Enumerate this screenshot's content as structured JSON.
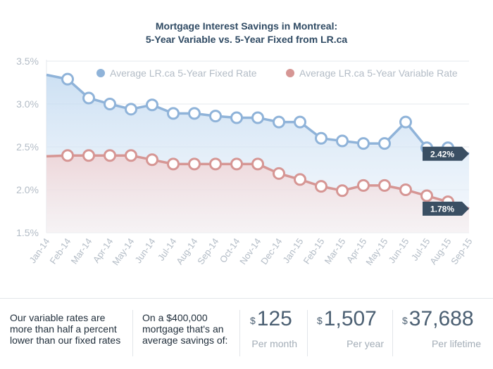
{
  "chart_data": {
    "type": "line",
    "title_line1": "Mortgage Interest Savings in Montreal:",
    "title_line2": "5-Year Variable vs. 5-Year Fixed from LR.ca",
    "categories": [
      "Jan-14",
      "Feb-14",
      "Mar-14",
      "Apr-14",
      "May-14",
      "Jun-14",
      "Jul-14",
      "Aug-14",
      "Sep-14",
      "Oct-14",
      "Nov-14",
      "Dec-14",
      "Jan-15",
      "Feb-15",
      "Mar-15",
      "Apr-15",
      "May-15",
      "Jun-15",
      "Jul-15",
      "Aug-15",
      "Sep-15"
    ],
    "y_ticks": [
      "1.5%",
      "2.0%",
      "2.5%",
      "3.0%",
      "3.5%"
    ],
    "ylim": [
      1.5,
      3.5
    ],
    "grid": true,
    "legend_position": "top",
    "series": [
      {
        "name": "Average LR.ca 5-Year Fixed Rate",
        "color": "#8fb3d9",
        "values": [
          3.34,
          3.29,
          3.07,
          3.0,
          2.94,
          2.99,
          2.89,
          2.89,
          2.86,
          2.84,
          2.84,
          2.79,
          2.79,
          2.6,
          2.57,
          2.54,
          2.54,
          2.79,
          2.49,
          2.49,
          2.42
        ],
        "end_label": "2.42%"
      },
      {
        "name": "Average LR.ca 5-Year Variable Rate",
        "color": "#d69694",
        "values": [
          2.39,
          2.4,
          2.4,
          2.4,
          2.4,
          2.35,
          2.3,
          2.3,
          2.3,
          2.3,
          2.3,
          2.19,
          2.12,
          2.04,
          1.99,
          2.05,
          2.05,
          2.0,
          1.93,
          1.86,
          1.78
        ],
        "end_label": "1.78%"
      }
    ]
  },
  "footer": {
    "text1": [
      "Our variable rates are",
      "more than half a percent",
      "lower than our fixed rates"
    ],
    "text2": [
      "On a $400,000",
      "mortgage that's an",
      "average savings of:"
    ],
    "stats": [
      {
        "currency": "$",
        "value": "125",
        "label": "Per month"
      },
      {
        "currency": "$",
        "value": "1,507",
        "label": "Per year"
      },
      {
        "currency": "$",
        "value": "37,688",
        "label": "Per lifetime"
      }
    ]
  },
  "colors": {
    "title": "#2f4a63",
    "grid": "#e6e9ee",
    "axis_text": "#b3bcc6",
    "tooltip_bg": "#3a4f63",
    "marker_fill": "#ffffff"
  }
}
